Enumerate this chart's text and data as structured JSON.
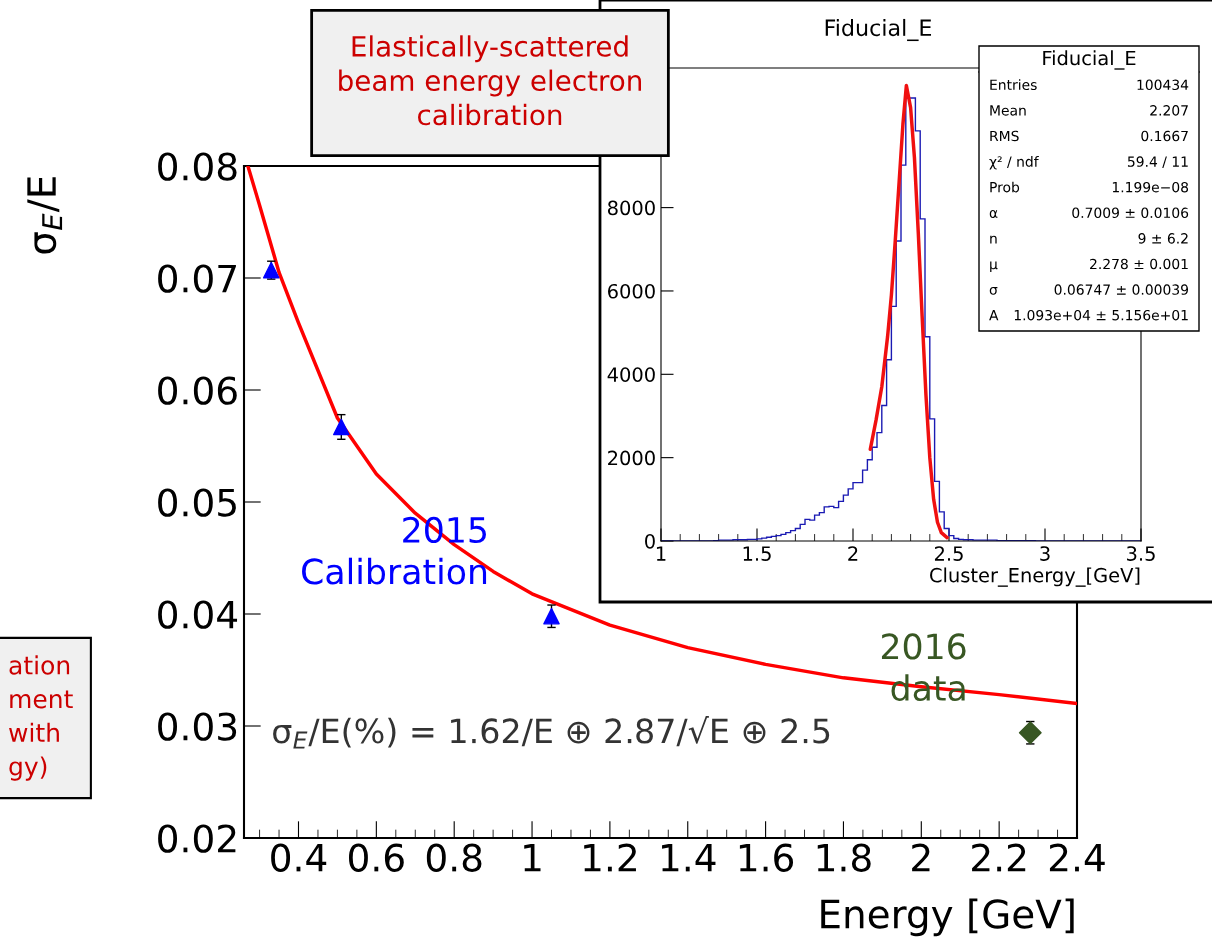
{
  "chart_data": [
    {
      "type": "scatter",
      "xlabel": "Energy [GeV]",
      "ylabel": "σ$_{E}$/E",
      "xlim": [
        0.26,
        2.4
      ],
      "xticks": [
        0.4,
        0.6,
        0.8,
        1,
        1.2,
        1.4,
        1.6,
        1.8,
        2,
        2.2,
        2.4
      ],
      "ylim": [
        0.02,
        0.08
      ],
      "yticks": [
        0.02,
        0.03,
        0.04,
        0.05,
        0.06,
        0.07,
        0.08
      ],
      "series": [
        {
          "name": "2015 Calibration",
          "type": "scatter",
          "marker": "triangle",
          "color": "#0000ff",
          "x": [
            0.33,
            0.51,
            1.05
          ],
          "values": [
            0.0707,
            0.0567,
            0.0398
          ],
          "errors": [
            0.0008,
            0.0011,
            0.001
          ]
        },
        {
          "name": "2016 data",
          "type": "scatter",
          "marker": "diamond",
          "color": "#385723",
          "x": [
            2.28
          ],
          "values": [
            0.0294
          ],
          "errors": [
            0.001
          ]
        },
        {
          "type": "line",
          "color": "#ff0000",
          "x": [
            0.27,
            0.3,
            0.35,
            0.4,
            0.5,
            0.6,
            0.7,
            0.8,
            0.9,
            1.0,
            1.2,
            1.4,
            1.6,
            1.8,
            2.0,
            2.2,
            2.4
          ],
          "values": [
            0.08,
            0.0765,
            0.0705,
            0.066,
            0.0575,
            0.0525,
            0.049,
            0.0462,
            0.0438,
            0.0418,
            0.039,
            0.037,
            0.0355,
            0.0343,
            0.0335,
            0.0328,
            0.032
          ]
        }
      ],
      "annotations": [
        "Elastically-scattered\nbeam energy electron\ncalibration",
        "σ$_{E}$/E(%) = 1.62/E ⊕ 2.87/√E ⊕ 2.5",
        "ation\nment\nwith\ngy)"
      ]
    },
    {
      "type": "histogram",
      "title": "Fiducial_E",
      "xlabel": "Cluster_Energy_[GeV]",
      "xlim": [
        1,
        3.5
      ],
      "xticks": [
        1,
        1.5,
        2,
        2.5,
        3,
        3.5
      ],
      "ylim": [
        0,
        11350
      ],
      "yticks": [
        0,
        2000,
        4000,
        6000,
        8000
      ],
      "bins": [
        1.0,
        1.025,
        1.05,
        1.075,
        1.1,
        1.125,
        1.15,
        1.175,
        1.2,
        1.225,
        1.25,
        1.275,
        1.3,
        1.325,
        1.35,
        1.375,
        1.4,
        1.425,
        1.45,
        1.475,
        1.5,
        1.525,
        1.55,
        1.575,
        1.6,
        1.625,
        1.65,
        1.675,
        1.7,
        1.725,
        1.75,
        1.775,
        1.8,
        1.825,
        1.85,
        1.875,
        1.9,
        1.925,
        1.95,
        1.975,
        2.0,
        2.025,
        2.05,
        2.075,
        2.1,
        2.125,
        2.15,
        2.175,
        2.2,
        2.225,
        2.25,
        2.275,
        2.3,
        2.325,
        2.35,
        2.375,
        2.4,
        2.425,
        2.45,
        2.475,
        2.5,
        2.525,
        2.55,
        2.575,
        2.6,
        2.625,
        2.65,
        2.675,
        2.7,
        2.725,
        2.75,
        2.775,
        2.8,
        2.825,
        2.85,
        2.875,
        2.9,
        2.925,
        2.95,
        2.975,
        3.0,
        3.025,
        3.05,
        3.075,
        3.1,
        3.125,
        3.15,
        3.175,
        3.2,
        3.225,
        3.25,
        3.275,
        3.3,
        3.325,
        3.35,
        3.375,
        3.4,
        3.425,
        3.45,
        3.475,
        3.5
      ],
      "series": [
        {
          "type": "histogram",
          "color": "#1a1ab3",
          "values": [
            0,
            0,
            0,
            0,
            0,
            0,
            0,
            0,
            0,
            0,
            0,
            10,
            20,
            20,
            20,
            30,
            30,
            30,
            40,
            40,
            50,
            70,
            90,
            110,
            130,
            160,
            200,
            250,
            300,
            400,
            520,
            500,
            620,
            680,
            820,
            830,
            800,
            950,
            1100,
            1250,
            1400,
            1400,
            1700,
            1950,
            2250,
            2600,
            3250,
            4350,
            5630,
            7200,
            9020,
            10630,
            10630,
            9840,
            7730,
            4900,
            2930,
            1430,
            700,
            300,
            130,
            60,
            40,
            30,
            30,
            20,
            20,
            20,
            20,
            20,
            10,
            10,
            10,
            10,
            10,
            10,
            10,
            10,
            0,
            0,
            0,
            0,
            0,
            0,
            0,
            0,
            0,
            0,
            0,
            0,
            0,
            0,
            0,
            0,
            0,
            0,
            0,
            0,
            0,
            0
          ]
        },
        {
          "type": "line",
          "color": "#f01010",
          "x": [
            2.09,
            2.12,
            2.15,
            2.18,
            2.2,
            2.22,
            2.24,
            2.26,
            2.278,
            2.3,
            2.32,
            2.34,
            2.36,
            2.38,
            2.4,
            2.42,
            2.44,
            2.46,
            2.49
          ],
          "values": [
            2200,
            2900,
            3700,
            4900,
            5900,
            7200,
            8600,
            10000,
            10930,
            10400,
            9200,
            7400,
            5400,
            3500,
            2000,
            1000,
            450,
            200,
            80
          ]
        }
      ],
      "annotations": [
        "Fiducial_E",
        "Entries",
        "100434",
        "Mean",
        "2.207",
        "RMS",
        "0.1667",
        "χ² / ndf",
        "59.4 / 11",
        "Prob",
        "1.199e−08",
        "α",
        "0.7009 ± 0.0106",
        "n",
        "9 ± 6.2",
        "μ",
        "2.278 ± 0.001",
        "σ",
        "0.06747 ± 0.00039",
        "A",
        "1.093e+04 ± 5.156e+01"
      ]
    }
  ]
}
